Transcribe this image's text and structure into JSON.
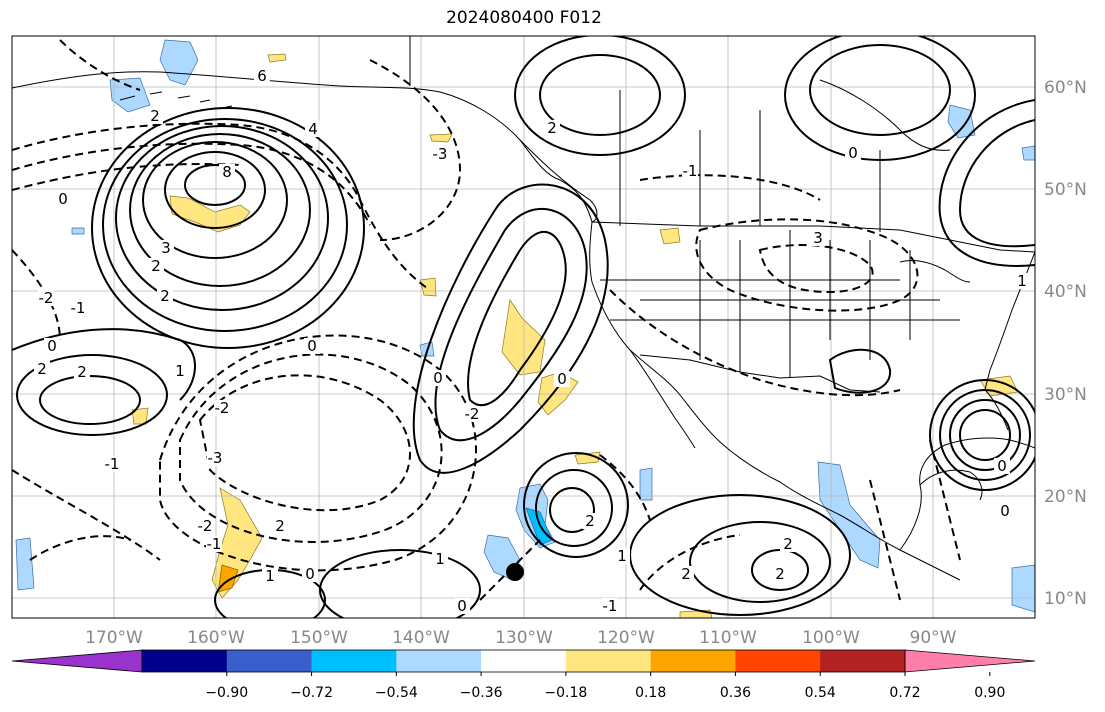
{
  "title": "2024080400 F012",
  "map": {
    "lon_labels": [
      "170°W",
      "160°W",
      "150°W",
      "140°W",
      "130°W",
      "120°W",
      "110°W",
      "100°W",
      "90°W"
    ],
    "lat_labels": [
      "60°N",
      "50°N",
      "40°N",
      "30°N",
      "20°N",
      "10°N"
    ],
    "contour_labels": [
      "6",
      "2",
      "4",
      "8",
      "0",
      "3",
      "2",
      "2",
      "-2",
      "-1",
      "0",
      "2",
      "2",
      "1",
      "0",
      "-2",
      "-3",
      "-1",
      "2",
      "1",
      "0",
      "0",
      "-2",
      "0",
      "2",
      "3",
      "-1",
      "0",
      "1",
      "2",
      "1",
      "2",
      "0",
      "-3",
      "2",
      "2",
      "-1",
      "0",
      "0",
      "1",
      "-2",
      "-1"
    ],
    "marker": "storm-center",
    "colors": {
      "neg_strong": "#9a32cd",
      "neg_090": "#00008b",
      "neg_072": "#3a5fcd",
      "neg_054": "#00bfff",
      "neg_036": "#add8ff",
      "pos_018": "#ffe680",
      "pos_036": "#ffa500",
      "pos_054": "#ff4500",
      "pos_072": "#b22222",
      "pos_090": "#ff7faa"
    }
  },
  "colorbar": {
    "ticks": [
      "−0.90",
      "−0.72",
      "−0.54",
      "−0.36",
      "−0.18",
      "0.18",
      "0.36",
      "0.54",
      "0.72",
      "0.90"
    ],
    "colors": [
      "#9a32cd",
      "#00008b",
      "#3a5fcd",
      "#00bfff",
      "#add8ff",
      "#ffffff",
      "#ffe680",
      "#ffa500",
      "#ff4500",
      "#b22222",
      "#ff7faa"
    ]
  }
}
